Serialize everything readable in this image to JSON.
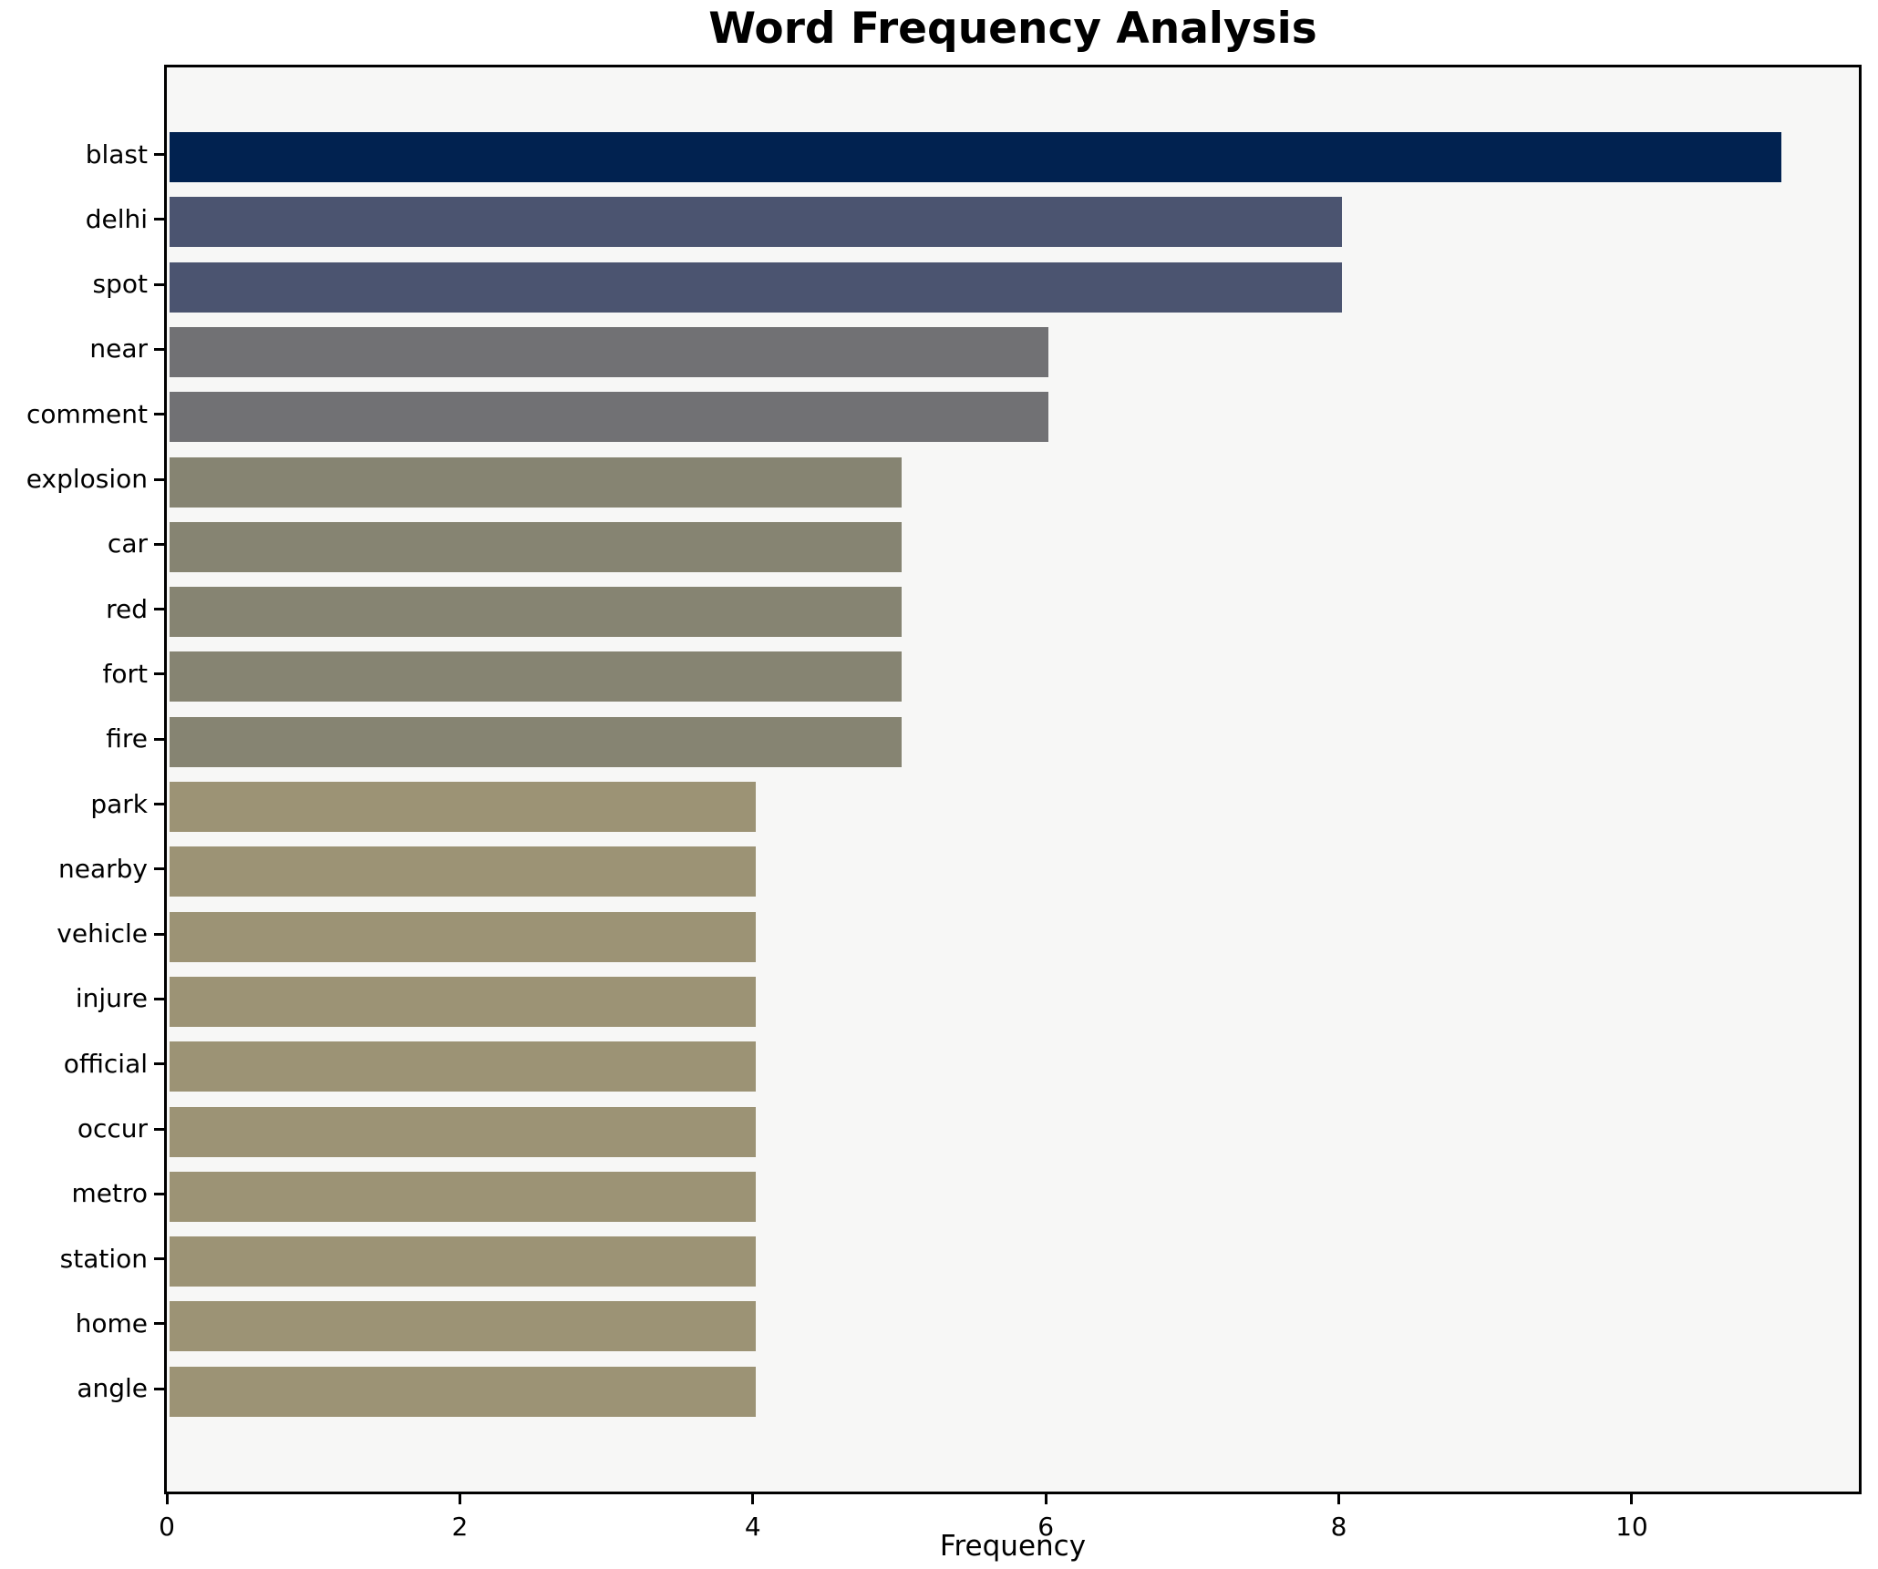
{
  "chart_data": {
    "type": "bar",
    "orientation": "horizontal",
    "title": "Word Frequency Analysis",
    "xlabel": "Frequency",
    "ylabel": "",
    "categories": [
      "blast",
      "delhi",
      "spot",
      "near",
      "comment",
      "explosion",
      "car",
      "red",
      "fort",
      "fire",
      "park",
      "nearby",
      "vehicle",
      "injure",
      "official",
      "occur",
      "metro",
      "station",
      "home",
      "angle"
    ],
    "values": [
      11,
      8,
      8,
      6,
      6,
      5,
      5,
      5,
      5,
      5,
      4,
      4,
      4,
      4,
      4,
      4,
      4,
      4,
      4,
      4
    ],
    "bar_colors": [
      "#012250",
      "#4b5470",
      "#4b5470",
      "#717174",
      "#717174",
      "#868472",
      "#868472",
      "#868472",
      "#868472",
      "#868472",
      "#9c9375",
      "#9c9375",
      "#9c9375",
      "#9c9375",
      "#9c9375",
      "#9c9375",
      "#9c9375",
      "#9c9375",
      "#9c9375",
      "#9c9375"
    ],
    "xlim": [
      0,
      11.55
    ],
    "xticks": [
      0,
      2,
      4,
      6,
      8,
      10
    ],
    "grid": false,
    "legend": null,
    "plot_background": "#f7f7f6",
    "figure_background": "#ffffff",
    "spine_color": "#000000"
  }
}
